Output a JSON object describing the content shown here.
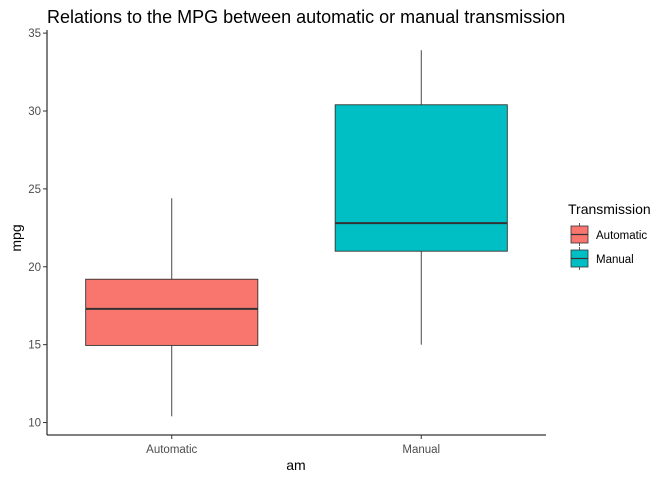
{
  "chart_data": {
    "type": "boxplot",
    "title": "Relations to the MPG between automatic or manual transmission",
    "xlabel": "am",
    "ylabel": "mpg",
    "ylim": [
      9.2,
      35.2
    ],
    "yticks": [
      10,
      15,
      20,
      25,
      30,
      35
    ],
    "categories": [
      "Automatic",
      "Manual"
    ],
    "series": [
      {
        "name": "Automatic",
        "color": "#F8766D",
        "min": 10.4,
        "q1": 14.95,
        "median": 17.3,
        "q3": 19.2,
        "max": 24.4
      },
      {
        "name": "Manual",
        "color": "#00BFC4",
        "min": 15.0,
        "q1": 21.0,
        "median": 22.8,
        "q3": 30.4,
        "max": 33.9
      }
    ],
    "legend": {
      "title": "Transmission",
      "placement": "right",
      "items": [
        "Automatic",
        "Manual"
      ]
    },
    "grid": false
  }
}
